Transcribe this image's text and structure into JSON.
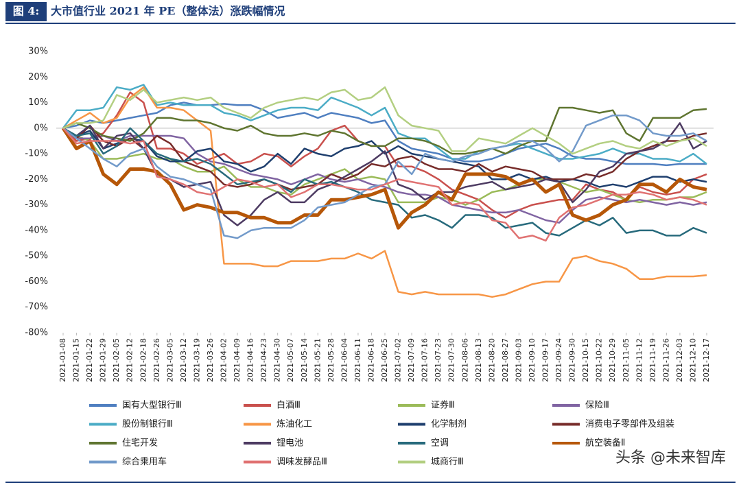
{
  "figure_label": "图 4:",
  "chart_data": {
    "type": "line",
    "title": "大市值行业 2021 年 PE（整体法）涨跌幅情况",
    "categories": [
      "2021-01-08",
      "2021-01-15",
      "2021-01-22",
      "2021-01-29",
      "2021-02-05",
      "2021-02-12",
      "2021-02-18",
      "2021-02-26",
      "2021-03-05",
      "2021-03-12",
      "2021-03-19",
      "2021-03-26",
      "2021-04-02",
      "2021-04-09",
      "2021-04-16",
      "2021-04-23",
      "2021-04-30",
      "2021-05-07",
      "2021-05-14",
      "2021-05-21",
      "2021-05-28",
      "2021-06-04",
      "2021-06-11",
      "2021-06-18",
      "2021-06-25",
      "2021-07-02",
      "2021-07-09",
      "2021-07-16",
      "2021-07-23",
      "2021-07-30",
      "2021-08-06",
      "2021-08-13",
      "2021-08-20",
      "2021-08-27",
      "2021-09-03",
      "2021-09-10",
      "2021-09-17",
      "2021-09-24",
      "2021-09-30",
      "2021-10-15",
      "2021-10-22",
      "2021-10-29",
      "2021-11-05",
      "2021-11-12",
      "2021-11-19",
      "2021-11-26",
      "2021-12-03",
      "2021-12-10",
      "2021-12-17"
    ],
    "ylim": [
      -80,
      30
    ],
    "yticks": [
      {
        "value": 30,
        "label": "30%"
      },
      {
        "value": 20,
        "label": "20%"
      },
      {
        "value": 10,
        "label": "10%"
      },
      {
        "value": 0,
        "label": "0%"
      },
      {
        "value": -10,
        "label": "-10%"
      },
      {
        "value": -20,
        "label": "-20%"
      },
      {
        "value": -30,
        "label": "-30%"
      },
      {
        "value": -40,
        "label": "-40%"
      },
      {
        "value": -50,
        "label": "-50%"
      },
      {
        "value": -60,
        "label": "-60%"
      },
      {
        "value": -70,
        "label": "-70%"
      },
      {
        "value": -80,
        "label": "-80%"
      }
    ],
    "series": [
      {
        "name": "国有大型银行Ⅲ",
        "color": "#4f7fc0",
        "values": [
          0,
          1,
          3,
          2,
          3,
          4,
          5,
          6,
          9,
          10,
          9,
          9,
          9.5,
          9,
          9,
          7,
          4,
          5,
          6,
          4,
          6,
          5,
          4,
          2,
          3,
          -5,
          -8,
          -9,
          -10,
          -12,
          -13,
          -13,
          -12,
          -10,
          -8,
          -7,
          -6,
          -8,
          -11,
          -12,
          -12,
          -13,
          -14,
          -14,
          -14,
          -14.5,
          -14,
          -14,
          -14
        ]
      },
      {
        "name": "白酒Ⅲ",
        "color": "#c9504d",
        "values": [
          0,
          -5,
          -4,
          -2,
          5,
          14,
          10,
          -8,
          -8,
          -10,
          -14,
          -12,
          -10,
          -14,
          -13,
          -10,
          -11,
          -15,
          -11,
          -8,
          -1,
          1,
          -5,
          -7,
          -7,
          -15,
          -15,
          -17,
          -20,
          -24,
          -26,
          -28,
          -32,
          -35,
          -32,
          -30,
          -29,
          -28,
          -28,
          -22,
          -24,
          -25,
          -28,
          -23,
          -25,
          -26,
          -25,
          -20,
          -18
        ]
      },
      {
        "name": "证券Ⅲ",
        "color": "#9bbb59",
        "values": [
          0,
          -3,
          -5,
          -12,
          -12,
          -11,
          -10,
          -12,
          -12,
          -15,
          -17,
          -17,
          -15,
          -20,
          -23,
          -23,
          -25,
          -26,
          -22,
          -20,
          -18,
          -16,
          -20,
          -19,
          -20,
          -29,
          -29,
          -29,
          -27,
          -28,
          -30,
          -28,
          -25,
          -24,
          -22,
          -20,
          -20,
          -21,
          -23,
          -25,
          -24,
          -26,
          -28,
          -29,
          -28,
          -28,
          -27,
          -27,
          -25
        ]
      },
      {
        "name": "保险Ⅲ",
        "color": "#8064a2",
        "values": [
          0,
          -4,
          -4,
          -3,
          -5,
          -3,
          -3,
          -3,
          -3,
          -4,
          -10,
          -13,
          -14,
          -16,
          -18,
          -19,
          -20,
          -22,
          -20,
          -18,
          -20,
          -21,
          -20,
          -22,
          -23,
          -25,
          -26,
          -26,
          -27,
          -30,
          -31,
          -32,
          -33,
          -33,
          -32,
          -34,
          -36,
          -37,
          -32,
          -28,
          -27,
          -28,
          -29,
          -28,
          -29,
          -30,
          -29,
          -30,
          -29
        ]
      },
      {
        "name": "股份制银行Ⅲ",
        "color": "#4bacc6",
        "values": [
          0,
          7,
          7,
          8,
          16,
          15,
          17,
          9,
          10,
          9,
          9,
          9,
          6,
          5,
          3,
          5,
          7,
          8,
          8,
          7,
          12,
          10,
          8,
          5,
          8,
          -2,
          -4,
          -4,
          -8,
          -12,
          -12,
          -9,
          -8,
          -7,
          -6,
          -8,
          -10,
          -12,
          -12,
          -11,
          -10,
          -8,
          -10,
          -10,
          -12,
          -12,
          -13,
          -10,
          -14
        ]
      },
      {
        "name": "炼油化工",
        "color": "#f79646",
        "values": [
          0,
          3,
          6,
          2,
          4,
          12,
          16,
          8,
          8,
          7,
          3,
          -1,
          -53,
          -53,
          -53,
          -54,
          -54,
          -52,
          -52,
          -52,
          -51,
          -51,
          -49,
          -51,
          -48,
          -64,
          -65,
          -64,
          -65,
          -65,
          -65,
          -65,
          -66,
          -65,
          -63,
          -61,
          -60,
          -60,
          -51,
          -50,
          -52,
          -53,
          -55,
          -59,
          -59,
          -58,
          -58,
          -58,
          -57.5
        ]
      },
      {
        "name": "化学制剂",
        "color": "#1f3f6e",
        "values": [
          0,
          -3,
          -1,
          -8,
          -6,
          -4,
          -5,
          -11,
          -13,
          -13,
          -9,
          -8,
          -13,
          -14,
          -17,
          -15,
          -10,
          -14,
          -8,
          -10,
          -11,
          -8,
          -7,
          -5,
          -10,
          -7,
          -10,
          -11,
          -12,
          -13,
          -14,
          -15,
          -20,
          -20,
          -18,
          -20,
          -19,
          -21,
          -20,
          -21,
          -23,
          -22,
          -23,
          -21,
          -19,
          -19,
          -21,
          -20,
          -21
        ]
      },
      {
        "name": "消费电子零部件及组装",
        "color": "#772c2a",
        "values": [
          0,
          -4,
          1,
          -5,
          -7,
          -4,
          -8,
          -3,
          -6,
          -13,
          -15,
          -17,
          -22,
          -23,
          -22,
          -20,
          -22,
          -24,
          -23,
          -22,
          -18,
          -20,
          -18,
          -14,
          -15,
          -12,
          -11,
          -14,
          -16,
          -16,
          -17,
          -14,
          -17,
          -15,
          -16,
          -17,
          -20,
          -20,
          -20,
          -18,
          -19,
          -17,
          -12,
          -9,
          -7,
          -5,
          -5,
          -3,
          -2
        ]
      },
      {
        "name": "住宅开发",
        "color": "#5f7530",
        "values": [
          0,
          2,
          0,
          -3,
          -4,
          -5,
          -2,
          4,
          4,
          3,
          3,
          2,
          0,
          -1,
          1,
          -2,
          -3,
          -3,
          -2,
          -3,
          -1,
          -2,
          -5,
          -7,
          -7,
          -4,
          -4,
          -5,
          -7,
          -10,
          -10,
          -9,
          -8,
          -10,
          -7,
          -5,
          -5,
          8,
          8,
          7,
          6,
          7,
          -2,
          -5,
          4,
          4,
          4,
          7,
          7.5
        ]
      },
      {
        "name": "锂电池",
        "color": "#4d3b62",
        "values": [
          0,
          -3,
          1,
          -8,
          -3,
          -2,
          -8,
          -18,
          -20,
          -23,
          -22,
          -21,
          -34,
          -38,
          -34,
          -28,
          -25,
          -29,
          -29,
          -24,
          -22,
          -19,
          -16,
          -13,
          -9,
          -22,
          -24,
          -28,
          -25,
          -25,
          -23,
          -22,
          -21,
          -24,
          -23,
          -22,
          -20,
          -21,
          -29,
          -24,
          -17,
          -15,
          -10,
          -9,
          -8,
          -5,
          2,
          -8,
          -5
        ]
      },
      {
        "name": "空调",
        "color": "#276a7c",
        "values": [
          0,
          -3,
          -2,
          -10,
          -7,
          0,
          -5,
          -10,
          -12,
          -13,
          -12,
          -14,
          -18,
          -22,
          -21,
          -20,
          -22,
          -25,
          -20,
          -22,
          -21,
          -23,
          -25,
          -28,
          -29,
          -30,
          -35,
          -34,
          -36,
          -39,
          -34,
          -34,
          -35,
          -39,
          -38,
          -37,
          -41,
          -42,
          -39,
          -36,
          -38,
          -35,
          -41,
          -40,
          -40,
          -42,
          -42,
          -39,
          -41
        ]
      },
      {
        "name": "航空装备Ⅱ",
        "color": "#b65708",
        "width": 5,
        "values": [
          0,
          -8,
          -5,
          -18,
          -22,
          -16,
          -16,
          -17,
          -22,
          -32,
          -30,
          -31,
          -33,
          -33,
          -35,
          -35,
          -37,
          -37,
          -34,
          -34,
          -28,
          -28,
          -27,
          -26,
          -24,
          -39,
          -33,
          -30,
          -25,
          -28,
          -18,
          -18,
          -18,
          -19,
          -22,
          -20,
          -25,
          -22,
          -34,
          -36,
          -34,
          -30,
          -28,
          -22,
          -22,
          -25,
          -20,
          -23,
          -24
        ]
      },
      {
        "name": "综合乘用车",
        "color": "#729aca",
        "values": [
          0,
          -4,
          -8,
          -12,
          -15,
          -10,
          -8,
          -15,
          -19,
          -20,
          -22,
          -24,
          -42,
          -43,
          -40,
          -39,
          -39,
          -39,
          -36,
          -31,
          -30,
          -29,
          -26,
          -23,
          -22,
          -13,
          -18,
          -10,
          -12,
          -13,
          -11,
          -10,
          -8,
          -7,
          -5,
          -5,
          -8,
          -13,
          -9,
          1,
          3,
          5,
          5,
          3,
          -2,
          -3,
          -3,
          -2,
          -5
        ]
      },
      {
        "name": "调味发酵品Ⅲ",
        "color": "#e07272",
        "values": [
          0,
          -6,
          -5,
          -5,
          -5,
          -6,
          -5,
          -19,
          -20,
          -22,
          -25,
          -26,
          -23,
          -20,
          -21,
          -23,
          -22,
          -27,
          -25,
          -22,
          -22,
          -23,
          -24,
          -24,
          -22,
          -20,
          -21,
          -22,
          -23,
          -30,
          -29,
          -30,
          -36,
          -37,
          -43,
          -42,
          -44,
          -35,
          -31,
          -30,
          -28,
          -26,
          -26,
          -25,
          -26,
          -28,
          -27,
          -28,
          -30
        ]
      },
      {
        "name": "城商行Ⅲ",
        "color": "#b3cf81",
        "values": [
          0,
          2,
          2,
          3,
          13,
          11,
          15,
          10,
          11,
          12,
          11,
          12,
          8,
          6,
          4,
          8,
          10,
          11,
          12,
          11,
          14,
          15,
          11,
          12,
          16,
          5,
          1,
          0,
          -1,
          -9,
          -9,
          -4,
          -5,
          -6,
          -3,
          0,
          -3,
          -6,
          -10,
          -8,
          -6,
          -5,
          -7,
          -8,
          -5,
          -7,
          -5,
          -4,
          -7
        ]
      }
    ]
  },
  "watermark": "头条 @未来智库"
}
